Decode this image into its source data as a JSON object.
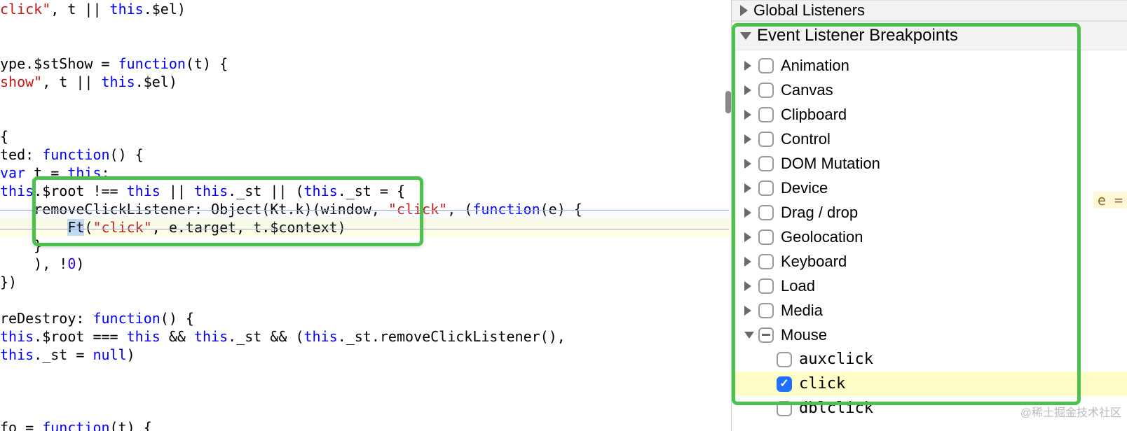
{
  "code": {
    "lines": [
      {
        "html": "<span class='str'>click\"</span>, t || <span class='kw-this'>this</span>.$el)"
      },
      {
        "html": ""
      },
      {
        "html": ""
      },
      {
        "html": "ype.$stShow = <span class='kw-func'>function</span>(t) {"
      },
      {
        "html": "<span class='str'>show\"</span>, t || <span class='kw-this'>this</span>.$el)"
      },
      {
        "html": ""
      },
      {
        "html": ""
      },
      {
        "html": "{"
      },
      {
        "html": "ted: <span class='kw-func'>function</span>() {"
      },
      {
        "html": "<span class='kw-var'>var</span> t = <span class='kw-this'>this</span>;"
      },
      {
        "html": "<span class='kw-this'>this</span>.$root !== <span class='kw-this'>this</span> || <span class='kw-this'>this</span>._st || (<span class='kw-this'>this</span>._st = {"
      },
      {
        "html": "    removeClickListener: Object(Kt.k)(window, <span class='str'>\"click\"</span>, (<span class='kw-func'>function</span>(e) {"
      },
      {
        "html": "        <span class='exec-highlight'>Ft</span>(<span class='str'>\"click\"</span>, e.target, t.$context)",
        "paused": true
      },
      {
        "html": "    }"
      },
      {
        "html": "    ), !<span class='num'>0</span>)"
      },
      {
        "html": "})"
      },
      {
        "html": ""
      },
      {
        "html": "reDestroy: <span class='kw-func'>function</span>() {"
      },
      {
        "html": "<span class='kw-this'>this</span>.$root === <span class='kw-this'>this</span> && <span class='kw-this'>this</span>._st && (<span class='kw-this'>this</span>._st.removeClickListener(),"
      },
      {
        "html": "<span class='kw-this'>this</span>._st = <span class='kw-null'>null</span>)"
      },
      {
        "html": ""
      },
      {
        "html": ""
      },
      {
        "html": ""
      },
      {
        "html": "fo = <span class='kw-func'>function</span>(t) {"
      }
    ],
    "inline_hint": "e ="
  },
  "sidebar": {
    "global_label": "Global Listeners",
    "breakpoints_label": "Event Listener Breakpoints",
    "categories": [
      {
        "label": "Animation",
        "checked": false,
        "expanded": false
      },
      {
        "label": "Canvas",
        "checked": false,
        "expanded": false
      },
      {
        "label": "Clipboard",
        "checked": false,
        "expanded": false
      },
      {
        "label": "Control",
        "checked": false,
        "expanded": false
      },
      {
        "label": "DOM Mutation",
        "checked": false,
        "expanded": false
      },
      {
        "label": "Device",
        "checked": false,
        "expanded": false
      },
      {
        "label": "Drag / drop",
        "checked": false,
        "expanded": false
      },
      {
        "label": "Geolocation",
        "checked": false,
        "expanded": false
      },
      {
        "label": "Keyboard",
        "checked": false,
        "expanded": false
      },
      {
        "label": "Load",
        "checked": false,
        "expanded": false
      },
      {
        "label": "Media",
        "checked": false,
        "expanded": false
      }
    ],
    "mouse": {
      "label": "Mouse",
      "mixed": true,
      "items": [
        {
          "label": "auxclick",
          "checked": false,
          "highlight": false
        },
        {
          "label": "click",
          "checked": true,
          "highlight": true
        },
        {
          "label": "dblclick",
          "checked": false,
          "highlight": false
        }
      ]
    }
  },
  "watermark": "@稀土掘金技术社区"
}
